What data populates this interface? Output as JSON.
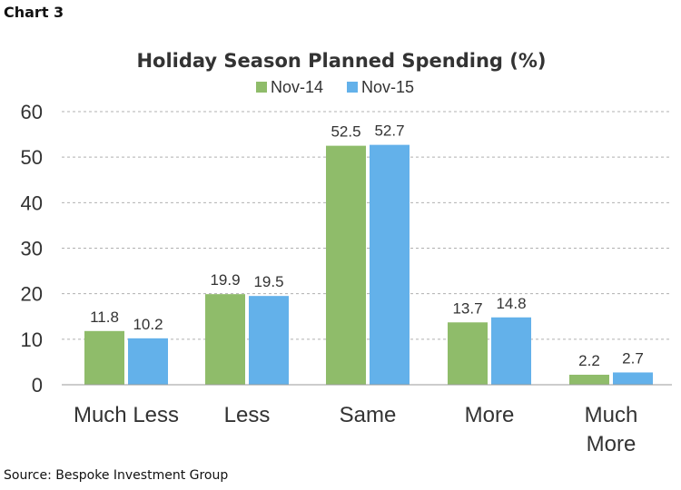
{
  "figure_label": "Chart 3",
  "source_note": "Source: Bespoke Investment Group",
  "colors": {
    "series_1": "#8fbc6a",
    "series_2": "#63b1ea"
  },
  "chart_data": {
    "type": "bar",
    "title": "Holiday Season Planned Spending (%)",
    "xlabel": "",
    "ylabel": "",
    "ylim": [
      0,
      60
    ],
    "yticks": [
      0,
      10,
      20,
      30,
      40,
      50,
      60
    ],
    "grid": true,
    "legend_position": "top-center",
    "categories": [
      [
        "Much Less"
      ],
      [
        "Less"
      ],
      [
        "Same"
      ],
      [
        "More"
      ],
      [
        "Much",
        "More"
      ]
    ],
    "series": [
      {
        "name": "Nov-14",
        "values": [
          11.8,
          19.9,
          52.5,
          13.7,
          2.2
        ]
      },
      {
        "name": "Nov-15",
        "values": [
          10.2,
          19.5,
          52.7,
          14.8,
          2.7
        ]
      }
    ]
  }
}
